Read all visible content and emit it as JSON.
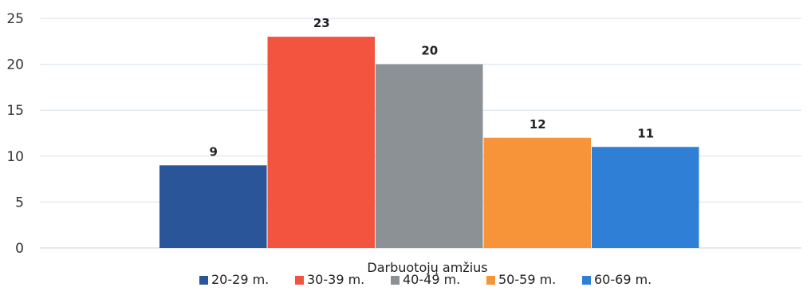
{
  "chart_data": {
    "type": "bar",
    "title": "",
    "xlabel": "Darbuotojų amžius",
    "ylabel": "",
    "ylim": [
      0,
      25
    ],
    "yticks": [
      0,
      5,
      10,
      15,
      20,
      25
    ],
    "grid": true,
    "legend_position": "bottom",
    "series": [
      {
        "name": "20-29 m.",
        "value": 9,
        "color": "#2a5599"
      },
      {
        "name": "30-39 m.",
        "value": 23,
        "color": "#f25440"
      },
      {
        "name": "40-49 m.",
        "value": 20,
        "color": "#8c9196"
      },
      {
        "name": "50-59 m.",
        "value": 12,
        "color": "#f7943a"
      },
      {
        "name": "60-69 m.",
        "value": 11,
        "color": "#2f7fd6"
      }
    ]
  }
}
